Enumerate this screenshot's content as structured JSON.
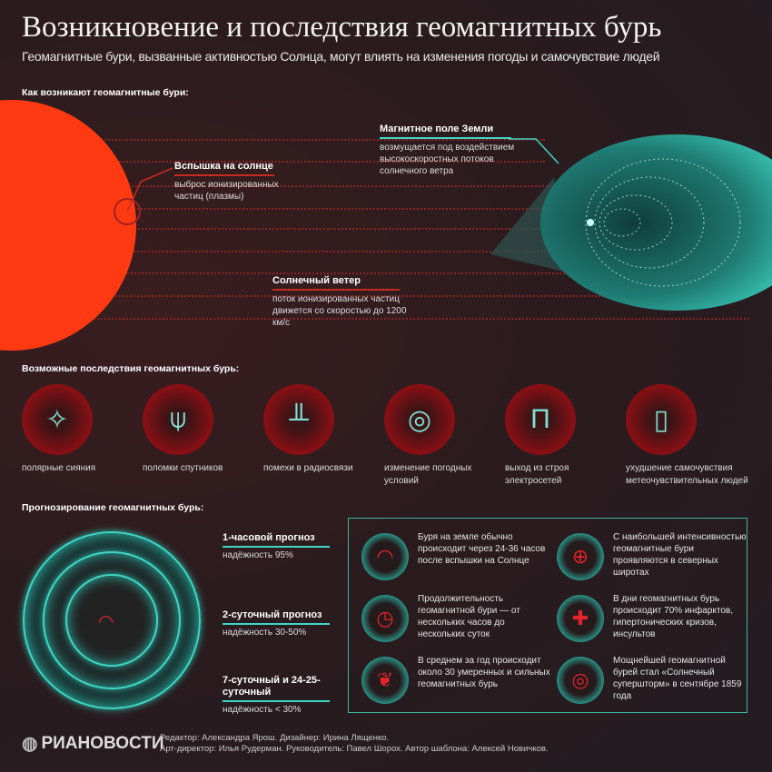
{
  "header": {
    "title": "Возникновение и последствия геомагнитных бурь",
    "subtitle": "Геомагнитные бури, вызванные активностью Солнца, могут влиять на изменения погоды и самочувствие людей"
  },
  "origin": {
    "heading": "Как возникают геомагнитные бури:",
    "flare": {
      "title": "Вспышка на солнце",
      "text": "выброс ионизированных частиц (плазмы)"
    },
    "field": {
      "title": "Магнитное поле Земли",
      "text": "возмущается под воздействием высокоскоростных потоков солнечного ветра"
    },
    "wind": {
      "title": "Солнечный ветер",
      "text": "поток ионизированных частиц движется со скоростью до 1200 км/с"
    }
  },
  "consequences": {
    "heading": "Возможные последствия геомагнитных бурь:",
    "items": [
      {
        "label": "полярные сияния",
        "icon": "aurora-icon"
      },
      {
        "label": "поломки спутников",
        "icon": "satellite-icon"
      },
      {
        "label": "помехи в радиосвязи",
        "icon": "radio-wave-icon"
      },
      {
        "label": "изменение погодных условий",
        "icon": "cyclone-icon"
      },
      {
        "label": "выход из строя электросетей",
        "icon": "power-line-icon"
      },
      {
        "label": "ухудшение самочувствия метеочувствительных людей",
        "icon": "pill-icon"
      }
    ]
  },
  "forecast": {
    "heading": "Прогнозирование геомагнитных бурь:",
    "items": [
      {
        "title": "1-часовой прогноз",
        "text": "надёжность 95%"
      },
      {
        "title": "2-суточный прогноз",
        "text": "надёжность 30-50%"
      },
      {
        "title": "7-суточный и 24-25-суточный",
        "text": "надёжность < 30%"
      }
    ]
  },
  "facts": [
    {
      "text": "Буря на земле обычно происходит через 24-36 часов после вспышки на Солнце",
      "icon": "gauge-icon",
      "glyph": "◠"
    },
    {
      "text": "С наибольшей интенсивностью геомагнитные бури проявляются в северных широтах",
      "icon": "globe-icon",
      "glyph": "⊕"
    },
    {
      "text": "Продолжительность геомагнитной бури — от нескольких часов до нескольких суток",
      "icon": "clock-icon",
      "glyph": "◷"
    },
    {
      "text": "В дни геомагнитных бурь происходит 70% инфарктов, гипертонических кризов, инсультов",
      "icon": "medical-cross-icon",
      "glyph": "✚"
    },
    {
      "text": "В среднем за год происходит около 30 умеренных и сильных геомагнитных бурь",
      "icon": "flare-icon",
      "glyph": "❦"
    },
    {
      "text": "Мощнейшей геомагнитной бурей стал «Солнечный супершторм» в сентябре 1859 года",
      "icon": "storm-icon",
      "glyph": "◎"
    }
  ],
  "footer": {
    "logo": "РИАНОВОСТИ",
    "credits_line1": "Редактор: Александра Ярош. Дизайнер: Ирина Лященко.",
    "credits_line2": "Арт-директор: Илья Рудерман. Руководитель: Павел Шорох. Автор шаблона: Алексей Новичков."
  },
  "colors": {
    "sun": "#ff3a12",
    "accent_red": "#c62b1f",
    "accent_teal": "#3fd6c4",
    "background": "#2a1b1e"
  }
}
